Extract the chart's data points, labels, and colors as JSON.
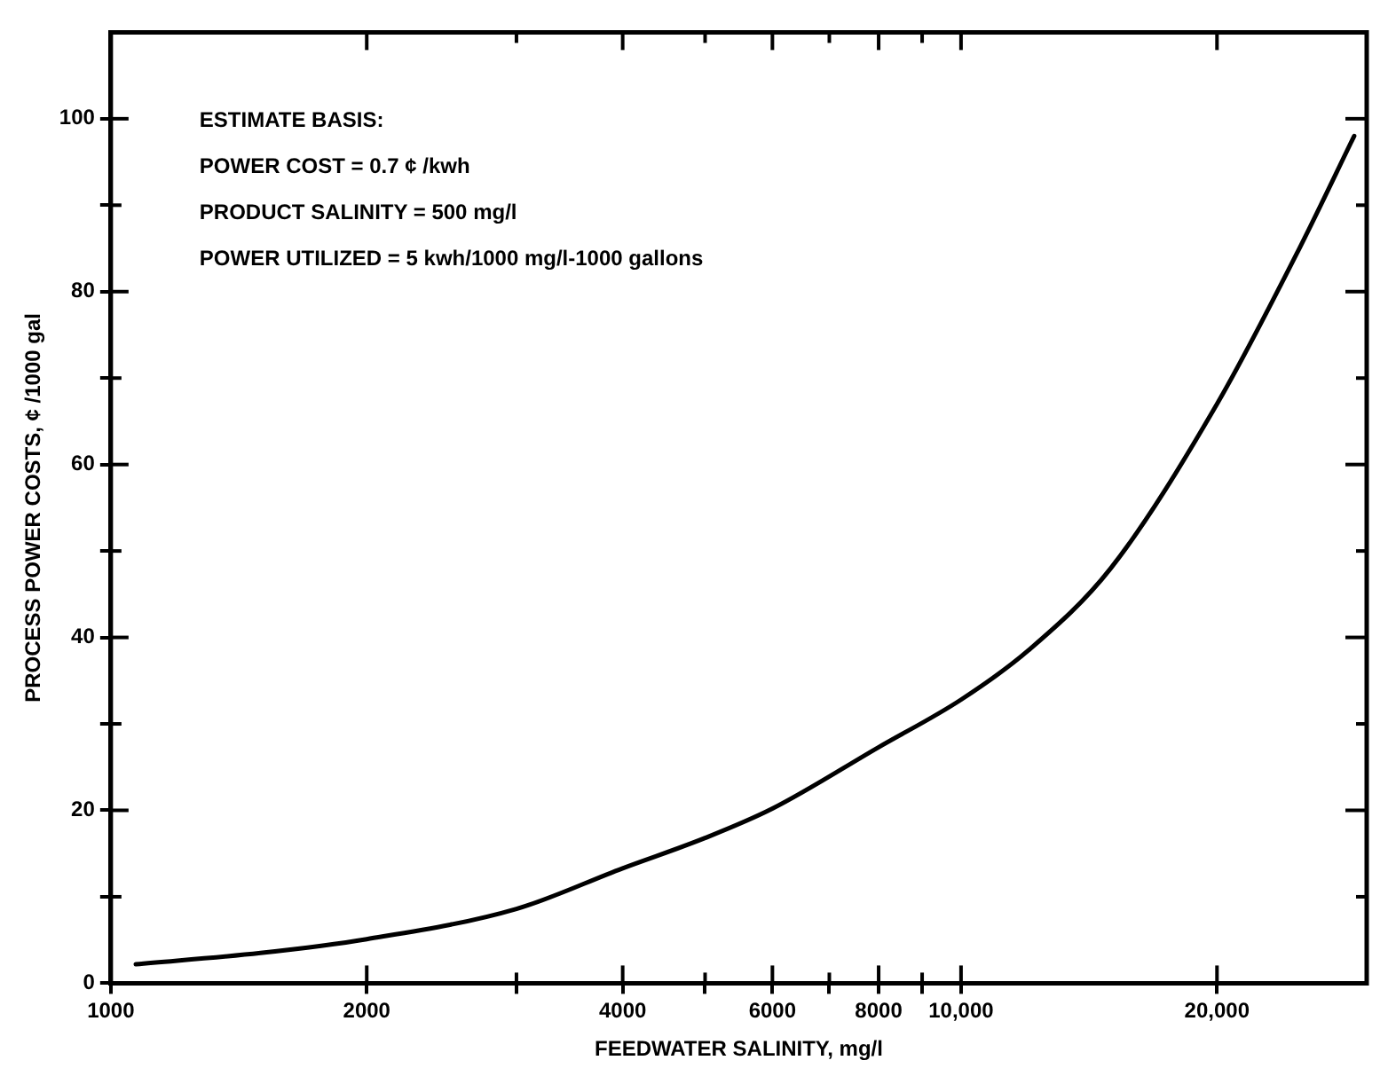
{
  "chart_data": {
    "type": "line",
    "xlabel": "FEEDWATER SALINITY, mg/l",
    "ylabel": "PROCESS POWER COSTS, ¢ /1000 gal",
    "annotations": [
      "ESTIMATE BASIS:",
      "POWER COST = 0.7 ¢ /kwh",
      "PRODUCT SALINITY = 500 mg/l",
      "POWER UTILIZED = 5 kwh/1000 mg/l-1000 gallons"
    ],
    "log": "x",
    "xlim": [
      1000,
      30000
    ],
    "ylim": [
      0,
      110
    ],
    "xticks": [
      1000,
      2000,
      {
        "value": 3000,
        "label": null
      },
      4000,
      {
        "value": 5000,
        "label": null
      },
      6000,
      {
        "value": 7000,
        "label": null
      },
      8000,
      {
        "value": 9000,
        "label": null
      },
      {
        "value": 10000,
        "label": "10,000"
      },
      {
        "value": 20000,
        "label": "20,000"
      }
    ],
    "yticks": [
      0,
      {
        "value": 10,
        "label": null
      },
      20,
      {
        "value": 30,
        "label": null
      },
      40,
      {
        "value": 50,
        "label": null
      },
      60,
      {
        "value": 70,
        "label": null
      },
      80,
      {
        "value": 90,
        "label": null
      },
      100
    ],
    "marker": "none",
    "line_style": "solid",
    "legend": false,
    "grid": false,
    "series": [
      {
        "color": "#000000",
        "x": [
          1070,
          1500,
          2000,
          3000,
          4000,
          5000,
          6000,
          8000,
          10000,
          12000,
          15000,
          20000,
          25000,
          29000
        ],
        "values": [
          2.2,
          3.5,
          5.1,
          8.6,
          13.3,
          16.8,
          20.2,
          27.3,
          32.8,
          38.5,
          48,
          67,
          85,
          98
        ]
      }
    ]
  }
}
